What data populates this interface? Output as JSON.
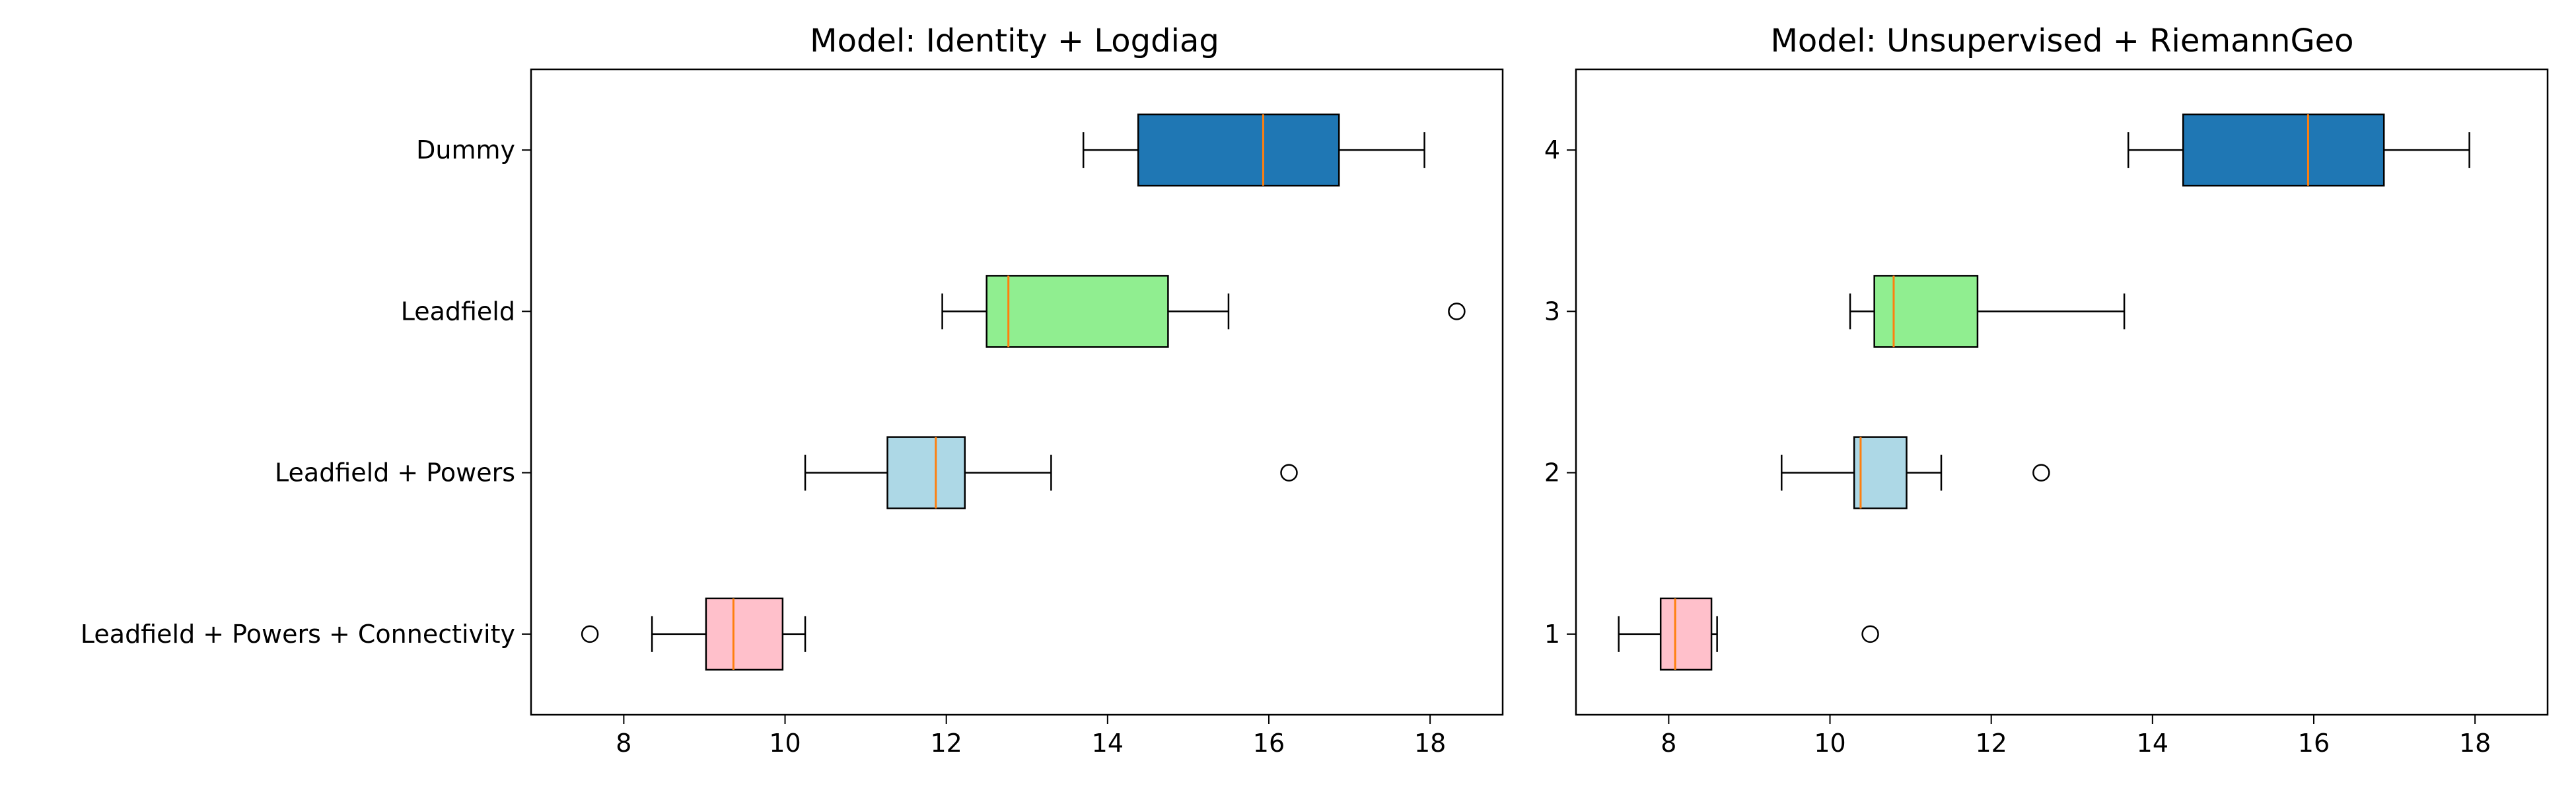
{
  "figure": {
    "colors": {
      "dummy": "#1f77b4",
      "leadfield": "#90ee90",
      "leadfield_powers": "#add8e6",
      "leadfield_powers_connectivity": "#ffc0cb",
      "median": "#ff7f0e",
      "frame": "#000000"
    }
  },
  "chart_data": [
    {
      "type": "boxplot",
      "orientation": "horizontal",
      "title": "Model: Identity + Logdiag",
      "xlabel": "",
      "ylabel": "",
      "xlim": [
        6.85,
        18.9
      ],
      "xticks": [
        "8",
        "10",
        "12",
        "14",
        "16",
        "18"
      ],
      "xtick_values": [
        8,
        10,
        12,
        14,
        16,
        18
      ],
      "grid": false,
      "categories": [
        "Dummy",
        "Leadfield",
        "Leadfield + Powers",
        "Leadfield + Powers + Connectivity"
      ],
      "boxes": [
        {
          "label": "Dummy",
          "color": "#1f77b4",
          "whisker_low": 13.7,
          "q1": 14.38,
          "median": 15.93,
          "q3": 16.87,
          "whisker_high": 17.93,
          "outliers": []
        },
        {
          "label": "Leadfield",
          "color": "#90ee90",
          "whisker_low": 11.95,
          "q1": 12.5,
          "median": 12.77,
          "q3": 14.75,
          "whisker_high": 15.5,
          "outliers": [
            18.33
          ]
        },
        {
          "label": "Leadfield + Powers",
          "color": "#add8e6",
          "whisker_low": 10.25,
          "q1": 11.27,
          "median": 11.87,
          "q3": 12.23,
          "whisker_high": 13.3,
          "outliers": [
            16.25
          ]
        },
        {
          "label": "Leadfield + Powers + Connectivity",
          "color": "#ffc0cb",
          "whisker_low": 8.35,
          "q1": 9.02,
          "median": 9.36,
          "q3": 9.97,
          "whisker_high": 10.25,
          "outliers": [
            7.58
          ]
        }
      ]
    },
    {
      "type": "boxplot",
      "orientation": "horizontal",
      "title": "Model: Unsupervised + RiemannGeo",
      "xlabel": "",
      "ylabel": "",
      "xlim": [
        6.85,
        18.9
      ],
      "xticks": [
        "8",
        "10",
        "12",
        "14",
        "16",
        "18"
      ],
      "xtick_values": [
        8,
        10,
        12,
        14,
        16,
        18
      ],
      "grid": false,
      "categories": [
        "4",
        "3",
        "2",
        "1"
      ],
      "boxes": [
        {
          "label": "4",
          "color": "#1f77b4",
          "whisker_low": 13.7,
          "q1": 14.38,
          "median": 15.93,
          "q3": 16.87,
          "whisker_high": 17.93,
          "outliers": []
        },
        {
          "label": "3",
          "color": "#90ee90",
          "whisker_low": 10.25,
          "q1": 10.55,
          "median": 10.79,
          "q3": 11.83,
          "whisker_high": 13.65,
          "outliers": []
        },
        {
          "label": "2",
          "color": "#add8e6",
          "whisker_low": 9.4,
          "q1": 10.3,
          "median": 10.38,
          "q3": 10.95,
          "whisker_high": 11.38,
          "outliers": [
            12.62
          ]
        },
        {
          "label": "1",
          "color": "#ffc0cb",
          "whisker_low": 7.38,
          "q1": 7.9,
          "median": 8.08,
          "q3": 8.53,
          "whisker_high": 8.6,
          "outliers": [
            10.5
          ]
        }
      ]
    }
  ]
}
